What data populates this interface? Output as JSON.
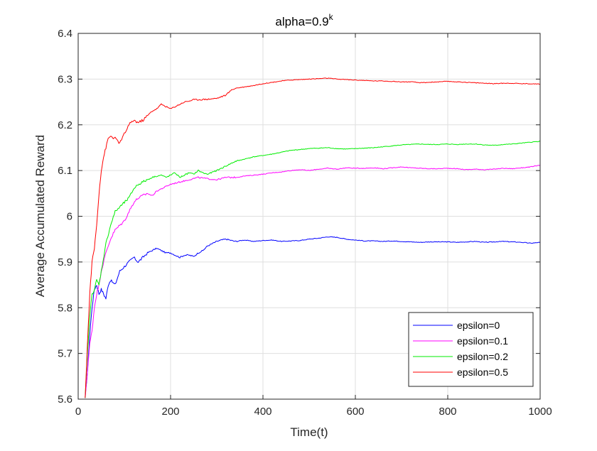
{
  "chart_data": {
    "type": "line",
    "title": "alpha=0.9",
    "title_superscript": "k",
    "xlabel": "Time(t)",
    "ylabel": "Average Accumulated Reward",
    "xlim": [
      0,
      1000
    ],
    "ylim": [
      5.6,
      6.4
    ],
    "xticks": [
      0,
      200,
      400,
      600,
      800,
      1000
    ],
    "yticks": [
      5.6,
      5.7,
      5.8,
      5.9,
      6,
      6.1,
      6.2,
      6.3,
      6.4
    ],
    "grid": true,
    "legend_position": "bottom-right",
    "series": [
      {
        "name": "epsilon=0",
        "color": "#0000ff",
        "points": [
          [
            15,
            5.6
          ],
          [
            20,
            5.66
          ],
          [
            25,
            5.74
          ],
          [
            30,
            5.8
          ],
          [
            35,
            5.84
          ],
          [
            40,
            5.85
          ],
          [
            45,
            5.83
          ],
          [
            50,
            5.84
          ],
          [
            55,
            5.83
          ],
          [
            60,
            5.82
          ],
          [
            65,
            5.85
          ],
          [
            70,
            5.86
          ],
          [
            80,
            5.85
          ],
          [
            90,
            5.88
          ],
          [
            100,
            5.89
          ],
          [
            110,
            5.9
          ],
          [
            120,
            5.91
          ],
          [
            130,
            5.9
          ],
          [
            140,
            5.91
          ],
          [
            150,
            5.92
          ],
          [
            160,
            5.925
          ],
          [
            170,
            5.93
          ],
          [
            180,
            5.925
          ],
          [
            190,
            5.92
          ],
          [
            200,
            5.92
          ],
          [
            210,
            5.915
          ],
          [
            220,
            5.91
          ],
          [
            230,
            5.915
          ],
          [
            240,
            5.915
          ],
          [
            250,
            5.912
          ],
          [
            260,
            5.92
          ],
          [
            270,
            5.925
          ],
          [
            280,
            5.935
          ],
          [
            290,
            5.94
          ],
          [
            300,
            5.945
          ],
          [
            310,
            5.948
          ],
          [
            320,
            5.95
          ],
          [
            340,
            5.945
          ],
          [
            360,
            5.948
          ],
          [
            380,
            5.945
          ],
          [
            400,
            5.947
          ],
          [
            420,
            5.948
          ],
          [
            440,
            5.945
          ],
          [
            460,
            5.946
          ],
          [
            480,
            5.947
          ],
          [
            500,
            5.95
          ],
          [
            520,
            5.952
          ],
          [
            540,
            5.955
          ],
          [
            560,
            5.954
          ],
          [
            580,
            5.95
          ],
          [
            600,
            5.948
          ],
          [
            620,
            5.946
          ],
          [
            640,
            5.946
          ],
          [
            660,
            5.945
          ],
          [
            680,
            5.946
          ],
          [
            700,
            5.945
          ],
          [
            720,
            5.944
          ],
          [
            740,
            5.943
          ],
          [
            760,
            5.944
          ],
          [
            780,
            5.944
          ],
          [
            800,
            5.944
          ],
          [
            820,
            5.943
          ],
          [
            840,
            5.944
          ],
          [
            860,
            5.945
          ],
          [
            880,
            5.943
          ],
          [
            900,
            5.944
          ],
          [
            920,
            5.945
          ],
          [
            940,
            5.944
          ],
          [
            960,
            5.943
          ],
          [
            980,
            5.941
          ],
          [
            1000,
            5.943
          ]
        ]
      },
      {
        "name": "epsilon=0.1",
        "color": "#ff00ff",
        "points": [
          [
            15,
            5.6
          ],
          [
            20,
            5.66
          ],
          [
            25,
            5.72
          ],
          [
            30,
            5.75
          ],
          [
            35,
            5.8
          ],
          [
            40,
            5.83
          ],
          [
            45,
            5.85
          ],
          [
            50,
            5.88
          ],
          [
            60,
            5.92
          ],
          [
            70,
            5.95
          ],
          [
            80,
            5.97
          ],
          [
            90,
            5.98
          ],
          [
            100,
            5.99
          ],
          [
            110,
            6.01
          ],
          [
            120,
            6.03
          ],
          [
            130,
            6.04
          ],
          [
            140,
            6.045
          ],
          [
            150,
            6.05
          ],
          [
            160,
            6.045
          ],
          [
            170,
            6.055
          ],
          [
            180,
            6.06
          ],
          [
            190,
            6.065
          ],
          [
            200,
            6.07
          ],
          [
            220,
            6.075
          ],
          [
            240,
            6.08
          ],
          [
            260,
            6.085
          ],
          [
            280,
            6.082
          ],
          [
            300,
            6.08
          ],
          [
            320,
            6.085
          ],
          [
            340,
            6.085
          ],
          [
            360,
            6.088
          ],
          [
            380,
            6.09
          ],
          [
            400,
            6.092
          ],
          [
            420,
            6.095
          ],
          [
            440,
            6.097
          ],
          [
            460,
            6.1
          ],
          [
            480,
            6.102
          ],
          [
            500,
            6.1
          ],
          [
            520,
            6.103
          ],
          [
            540,
            6.105
          ],
          [
            560,
            6.103
          ],
          [
            580,
            6.106
          ],
          [
            600,
            6.105
          ],
          [
            620,
            6.105
          ],
          [
            640,
            6.106
          ],
          [
            660,
            6.104
          ],
          [
            680,
            6.106
          ],
          [
            700,
            6.108
          ],
          [
            720,
            6.106
          ],
          [
            740,
            6.105
          ],
          [
            760,
            6.104
          ],
          [
            780,
            6.104
          ],
          [
            800,
            6.105
          ],
          [
            820,
            6.104
          ],
          [
            840,
            6.102
          ],
          [
            860,
            6.103
          ],
          [
            880,
            6.102
          ],
          [
            900,
            6.103
          ],
          [
            920,
            6.105
          ],
          [
            940,
            6.104
          ],
          [
            960,
            6.106
          ],
          [
            980,
            6.108
          ],
          [
            1000,
            6.112
          ]
        ]
      },
      {
        "name": "epsilon=0.2",
        "color": "#00ee00",
        "points": [
          [
            15,
            5.6
          ],
          [
            20,
            5.7
          ],
          [
            25,
            5.78
          ],
          [
            30,
            5.83
          ],
          [
            35,
            5.84
          ],
          [
            40,
            5.86
          ],
          [
            45,
            5.85
          ],
          [
            50,
            5.88
          ],
          [
            60,
            5.94
          ],
          [
            70,
            5.98
          ],
          [
            80,
            6.01
          ],
          [
            90,
            6.02
          ],
          [
            100,
            6.03
          ],
          [
            110,
            6.04
          ],
          [
            120,
            6.06
          ],
          [
            130,
            6.07
          ],
          [
            140,
            6.075
          ],
          [
            150,
            6.08
          ],
          [
            160,
            6.085
          ],
          [
            170,
            6.088
          ],
          [
            180,
            6.09
          ],
          [
            190,
            6.085
          ],
          [
            200,
            6.09
          ],
          [
            210,
            6.095
          ],
          [
            220,
            6.085
          ],
          [
            230,
            6.09
          ],
          [
            240,
            6.095
          ],
          [
            250,
            6.092
          ],
          [
            260,
            6.1
          ],
          [
            270,
            6.095
          ],
          [
            280,
            6.092
          ],
          [
            300,
            6.1
          ],
          [
            320,
            6.11
          ],
          [
            340,
            6.12
          ],
          [
            360,
            6.125
          ],
          [
            380,
            6.13
          ],
          [
            400,
            6.133
          ],
          [
            420,
            6.136
          ],
          [
            440,
            6.14
          ],
          [
            460,
            6.144
          ],
          [
            480,
            6.146
          ],
          [
            500,
            6.148
          ],
          [
            520,
            6.149
          ],
          [
            540,
            6.15
          ],
          [
            560,
            6.148
          ],
          [
            580,
            6.147
          ],
          [
            600,
            6.148
          ],
          [
            620,
            6.149
          ],
          [
            640,
            6.15
          ],
          [
            660,
            6.152
          ],
          [
            680,
            6.154
          ],
          [
            700,
            6.156
          ],
          [
            720,
            6.157
          ],
          [
            740,
            6.158
          ],
          [
            760,
            6.157
          ],
          [
            780,
            6.157
          ],
          [
            800,
            6.158
          ],
          [
            820,
            6.157
          ],
          [
            840,
            6.158
          ],
          [
            860,
            6.158
          ],
          [
            880,
            6.156
          ],
          [
            900,
            6.155
          ],
          [
            920,
            6.157
          ],
          [
            940,
            6.158
          ],
          [
            960,
            6.16
          ],
          [
            980,
            6.162
          ],
          [
            1000,
            6.164
          ]
        ]
      },
      {
        "name": "epsilon=0.5",
        "color": "#ff0000",
        "points": [
          [
            15,
            5.6
          ],
          [
            20,
            5.72
          ],
          [
            25,
            5.83
          ],
          [
            30,
            5.9
          ],
          [
            35,
            5.93
          ],
          [
            40,
            5.98
          ],
          [
            45,
            6.05
          ],
          [
            50,
            6.1
          ],
          [
            55,
            6.13
          ],
          [
            60,
            6.15
          ],
          [
            65,
            6.17
          ],
          [
            70,
            6.175
          ],
          [
            80,
            6.17
          ],
          [
            90,
            6.16
          ],
          [
            100,
            6.18
          ],
          [
            110,
            6.2
          ],
          [
            120,
            6.21
          ],
          [
            130,
            6.205
          ],
          [
            140,
            6.21
          ],
          [
            150,
            6.22
          ],
          [
            160,
            6.23
          ],
          [
            170,
            6.235
          ],
          [
            180,
            6.245
          ],
          [
            190,
            6.24
          ],
          [
            200,
            6.235
          ],
          [
            210,
            6.24
          ],
          [
            220,
            6.245
          ],
          [
            230,
            6.25
          ],
          [
            240,
            6.252
          ],
          [
            250,
            6.255
          ],
          [
            260,
            6.255
          ],
          [
            280,
            6.256
          ],
          [
            300,
            6.258
          ],
          [
            320,
            6.265
          ],
          [
            330,
            6.275
          ],
          [
            340,
            6.28
          ],
          [
            360,
            6.283
          ],
          [
            380,
            6.286
          ],
          [
            400,
            6.29
          ],
          [
            420,
            6.293
          ],
          [
            440,
            6.296
          ],
          [
            460,
            6.298
          ],
          [
            480,
            6.299
          ],
          [
            500,
            6.3
          ],
          [
            520,
            6.301
          ],
          [
            540,
            6.302
          ],
          [
            560,
            6.3
          ],
          [
            580,
            6.299
          ],
          [
            600,
            6.298
          ],
          [
            620,
            6.297
          ],
          [
            640,
            6.296
          ],
          [
            660,
            6.296
          ],
          [
            680,
            6.295
          ],
          [
            700,
            6.294
          ],
          [
            720,
            6.294
          ],
          [
            740,
            6.292
          ],
          [
            760,
            6.293
          ],
          [
            780,
            6.294
          ],
          [
            800,
            6.295
          ],
          [
            820,
            6.294
          ],
          [
            840,
            6.293
          ],
          [
            860,
            6.292
          ],
          [
            880,
            6.291
          ],
          [
            900,
            6.29
          ],
          [
            920,
            6.291
          ],
          [
            940,
            6.291
          ],
          [
            960,
            6.29
          ],
          [
            980,
            6.29
          ],
          [
            1000,
            6.289
          ]
        ]
      }
    ]
  }
}
